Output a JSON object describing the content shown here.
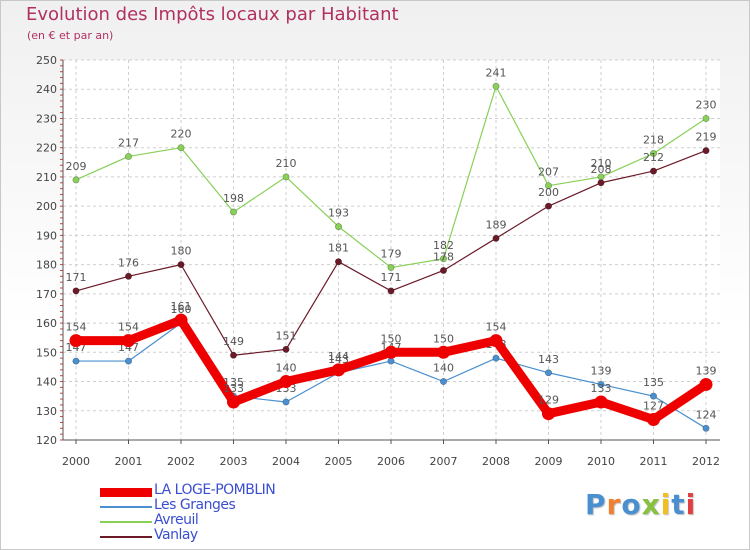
{
  "title": "Evolution des Impôts locaux par Habitant",
  "subtitle": "(en € et par an)",
  "logo_text": "Proxiti",
  "chart_data": {
    "type": "line",
    "x": [
      "2000",
      "2001",
      "2002",
      "2003",
      "2004",
      "2005",
      "2006",
      "2007",
      "2008",
      "2009",
      "2010",
      "2011",
      "2012"
    ],
    "ylim": [
      120,
      250
    ],
    "yticks": [
      120,
      130,
      140,
      150,
      160,
      170,
      180,
      190,
      200,
      210,
      220,
      230,
      240,
      250
    ],
    "grid": true,
    "series": [
      {
        "name": "Avreuil",
        "color": "#88d058",
        "values": [
          209,
          217,
          220,
          198,
          210,
          193,
          179,
          182,
          241,
          207,
          210,
          218,
          230
        ]
      },
      {
        "name": "Vanlay",
        "color": "#6b1a28",
        "values": [
          171,
          176,
          180,
          149,
          151,
          181,
          171,
          178,
          189,
          200,
          208,
          212,
          219
        ]
      },
      {
        "name": "Les Granges",
        "color": "#4a90d0",
        "values": [
          147,
          147,
          160,
          135,
          133,
          143,
          147,
          140,
          148,
          143,
          139,
          135,
          124
        ]
      },
      {
        "name": "LA LOGE-POMBLIN",
        "color": "#ee0000",
        "values": [
          154,
          154,
          161,
          133,
          140,
          144,
          150,
          150,
          154,
          129,
          133,
          127,
          139
        ]
      }
    ],
    "legend": [
      "LA LOGE-POMBLIN",
      "Les Granges",
      "Avreuil",
      "Vanlay"
    ]
  }
}
